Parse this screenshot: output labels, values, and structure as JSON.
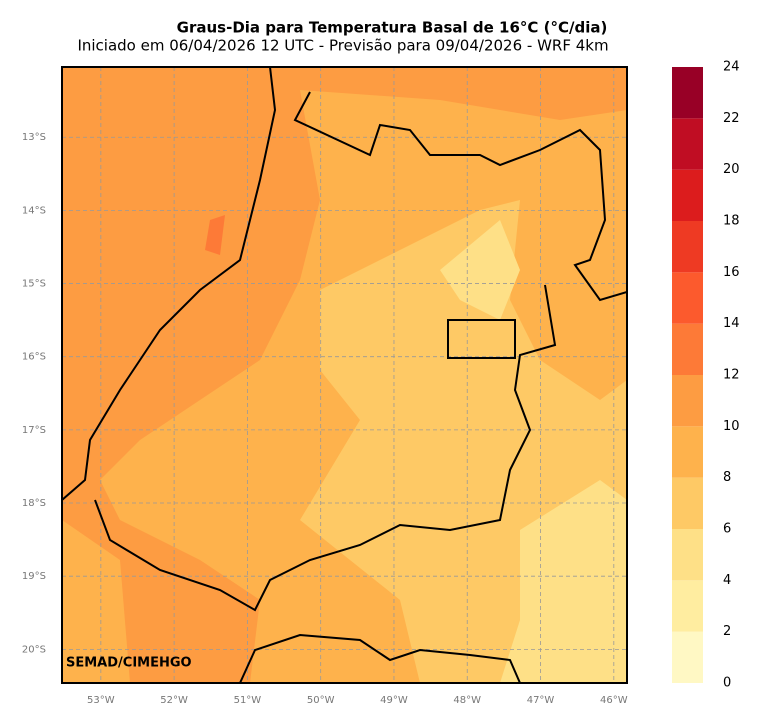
{
  "title": "Graus-Dia para Temperatura Basal de 16°C (°C/dia)",
  "subtitle": "Iniciado em 06/04/2026 12 UTC - Previsão para 09/04/2026 - WRF 4km",
  "watermark": "SEMAD/CIMEHGO",
  "map": {
    "xlim": [
      -53.53,
      -45.82
    ],
    "ylim": [
      -20.46,
      -12.04
    ],
    "grid": true,
    "xticks": [
      {
        "value": -53,
        "label": "53°W"
      },
      {
        "value": -52,
        "label": "52°W"
      },
      {
        "value": -51,
        "label": "51°W"
      },
      {
        "value": -50,
        "label": "50°W"
      },
      {
        "value": -49,
        "label": "49°W"
      },
      {
        "value": -48,
        "label": "48°W"
      },
      {
        "value": -47,
        "label": "47°W"
      },
      {
        "value": -46,
        "label": "46°W"
      }
    ],
    "yticks": [
      {
        "value": -13,
        "label": "13°S"
      },
      {
        "value": -14,
        "label": "14°S"
      },
      {
        "value": -15,
        "label": "15°S"
      },
      {
        "value": -16,
        "label": "16°S"
      },
      {
        "value": -17,
        "label": "17°S"
      },
      {
        "value": -18,
        "label": "18°S"
      },
      {
        "value": -19,
        "label": "19°S"
      },
      {
        "value": -20,
        "label": "20°S"
      }
    ]
  },
  "colorbar": {
    "levels": [
      0,
      2,
      4,
      6,
      8,
      10,
      12,
      14,
      16,
      18,
      20,
      22,
      24
    ],
    "colors": [
      "#fff8c4",
      "#ffeda0",
      "#fee087",
      "#fec965",
      "#feb24c",
      "#fd9c42",
      "#fd7a37",
      "#fc5a2d",
      "#ee3a23",
      "#dc1c1d",
      "#c00d23",
      "#980026"
    ]
  }
}
